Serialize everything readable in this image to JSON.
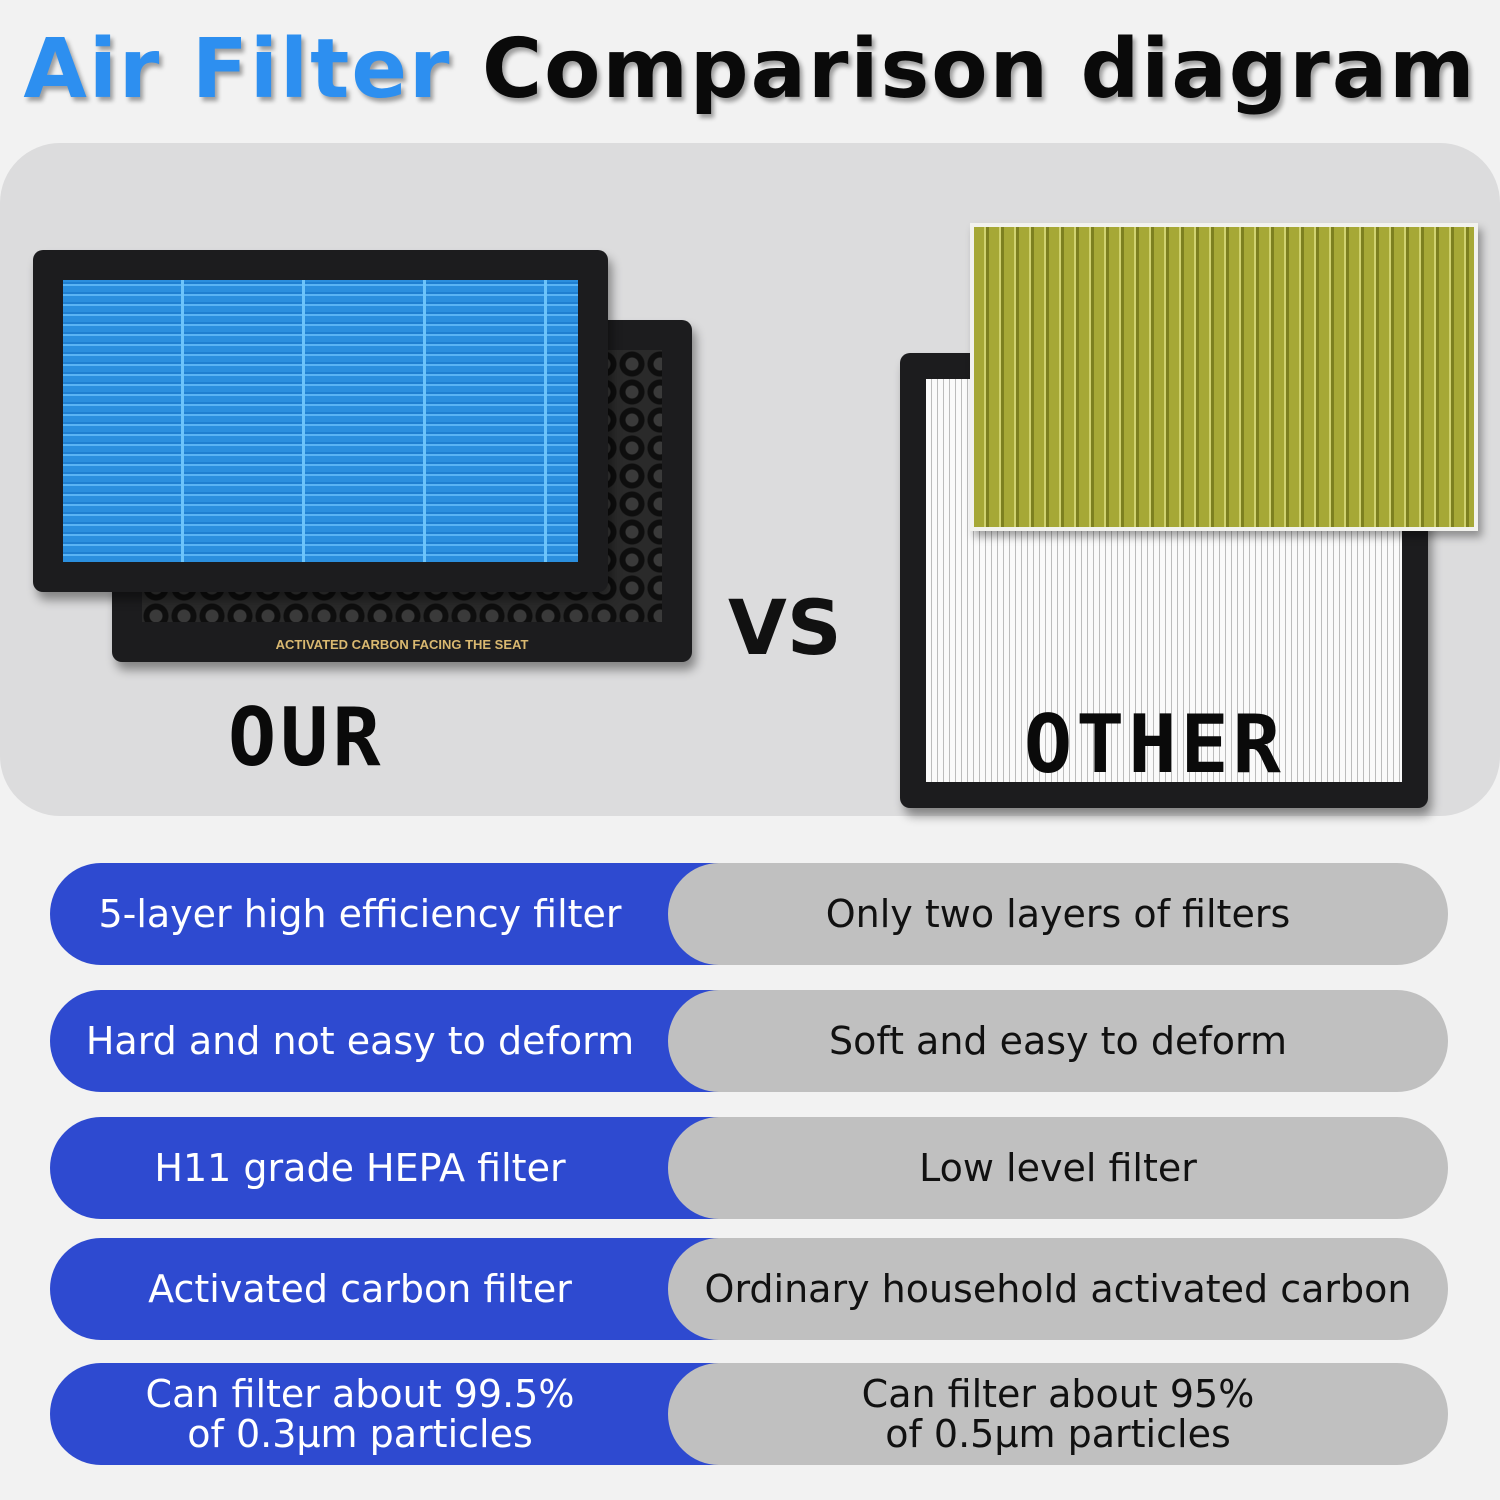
{
  "title": {
    "part1": "Air Filter",
    "part2": "Comparison diagram",
    "part1_color": "#2d8ff0"
  },
  "comparison": {
    "vs": "VS",
    "ours_label": "OUR",
    "other_label": "OTHER",
    "ours_print": "ACTIVATED CARBON FACING THE SEAT"
  },
  "colors": {
    "ours_pill": "#2e4ad0",
    "other_pill": "#c0c0c0"
  },
  "rows": [
    {
      "ours": "5-layer high efficiency filter",
      "other": "Only two layers of filters"
    },
    {
      "ours": "Hard and not easy to deform",
      "other": "Soft and easy to deform"
    },
    {
      "ours": "H11 grade HEPA filter",
      "other": "Low level filter"
    },
    {
      "ours": "Activated carbon filter",
      "other": "Ordinary household activated carbon"
    },
    {
      "ours": "Can filter about 99.5%\nof 0.3μm particles",
      "other": "Can filter about 95%\nof 0.5μm particles"
    }
  ]
}
